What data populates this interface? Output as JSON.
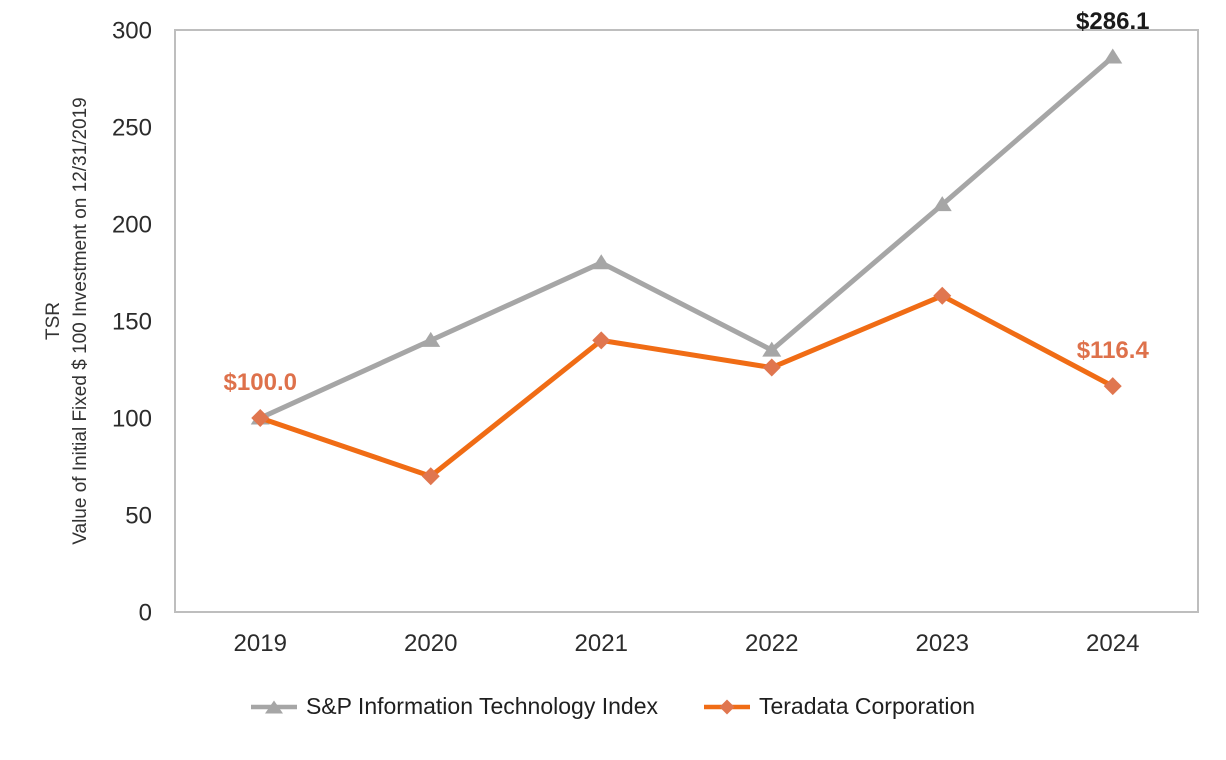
{
  "chart_data": {
    "type": "line",
    "title": "",
    "categories": [
      "2019",
      "2020",
      "2021",
      "2022",
      "2023",
      "2024"
    ],
    "series": [
      {
        "name": "S&P Information Technology Index",
        "line_color": "#A6A6A6",
        "marker": "triangle",
        "marker_color": "#A6A6A6",
        "values": [
          100.0,
          140,
          180,
          135,
          210,
          286.1
        ]
      },
      {
        "name": "Teradata Corporation",
        "line_color": "#F06C15",
        "marker": "diamond",
        "marker_color": "#E0764F",
        "values": [
          100.0,
          70,
          140,
          126,
          163,
          116.4
        ]
      }
    ],
    "ylabel_line1": "TSR",
    "ylabel_line2": "Value of Initial Fixed $ 100 Investment on 12/31/2019",
    "xlabel": "",
    "ylim": [
      0,
      300
    ],
    "yticks": [
      0,
      50,
      100,
      150,
      200,
      250,
      300
    ],
    "grid": false,
    "legend_position": "bottom",
    "plot_border_color": "#BEBEBE",
    "annotations": [
      {
        "text": "$100.0",
        "series_index": 1,
        "point_index": 0,
        "color": "#DE714B"
      },
      {
        "text": "$286.1",
        "series_index": 0,
        "point_index": 5,
        "color": "#1A1A1A"
      },
      {
        "text": "$116.4",
        "series_index": 1,
        "point_index": 5,
        "color": "#DE714B"
      }
    ]
  },
  "text_colors": {
    "tick": "#2B2B2B",
    "axis_title": "#333333",
    "legend": "#1F1F1F"
  }
}
